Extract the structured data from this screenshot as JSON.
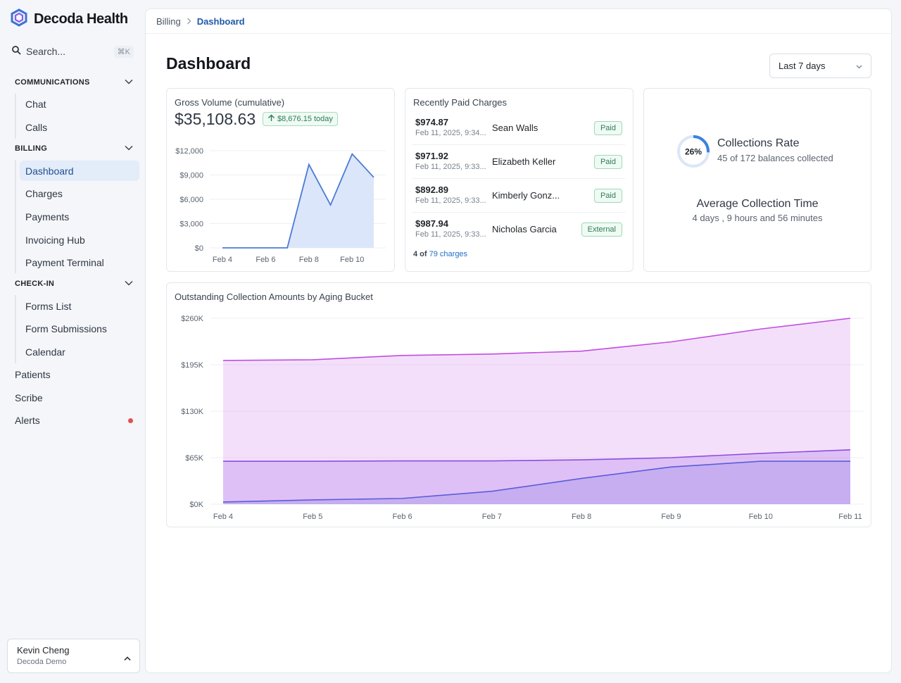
{
  "brand": {
    "name": "Decoda Health"
  },
  "search": {
    "placeholder": "Search...",
    "shortcut": "⌘K"
  },
  "sidebar": {
    "sections": [
      {
        "label": "COMMUNICATIONS",
        "items": [
          "Chat",
          "Calls"
        ]
      },
      {
        "label": "BILLING",
        "items": [
          "Dashboard",
          "Charges",
          "Payments",
          "Invoicing Hub",
          "Payment Terminal"
        ]
      },
      {
        "label": "CHECK-IN",
        "items": [
          "Forms List",
          "Form Submissions",
          "Calendar"
        ]
      }
    ],
    "top_items": [
      "Patients",
      "Scribe",
      "Alerts"
    ],
    "active_item": "Dashboard"
  },
  "user": {
    "name": "Kevin Cheng",
    "org": "Decoda Demo"
  },
  "breadcrumb": {
    "parent": "Billing",
    "current": "Dashboard"
  },
  "page": {
    "title": "Dashboard",
    "range": "Last 7 days"
  },
  "gross_volume": {
    "title": "Gross Volume (cumulative)",
    "value": "$35,108.63",
    "today_delta": "$8,676.15 today"
  },
  "recent_charges": {
    "title": "Recently Paid Charges",
    "rows": [
      {
        "amount": "$974.87",
        "date": "Feb 11, 2025, 9:34...",
        "name": "Sean Walls",
        "status": "Paid"
      },
      {
        "amount": "$971.92",
        "date": "Feb 11, 2025, 9:33...",
        "name": "Elizabeth Keller",
        "status": "Paid"
      },
      {
        "amount": "$892.89",
        "date": "Feb 11, 2025, 9:33...",
        "name": "Kimberly Gonz...",
        "status": "Paid"
      },
      {
        "amount": "$987.94",
        "date": "Feb 11, 2025, 9:33...",
        "name": "Nicholas Garcia",
        "status": "External"
      }
    ],
    "footer_prefix": "4 of",
    "footer_link": "79 charges"
  },
  "collections": {
    "rate": "26%",
    "rate_value": 0.26,
    "title": "Collections Rate",
    "subtitle": "45 of 172 balances collected",
    "avg_title": "Average Collection Time",
    "avg_value": "4 days , 9 hours and 56 minutes"
  },
  "colors": {
    "accent": "#1f5aa8",
    "line_blue": "#4a7bd4",
    "area_blue": "#dce6fa",
    "ring": "#3b82e0",
    "magenta": "#c04fe0",
    "purple": "#8a4fe0",
    "indigo": "#5a5ed8"
  },
  "chart_data": [
    {
      "type": "area",
      "title": "Gross Volume (cumulative)",
      "x": [
        "Feb 4",
        "Feb 5",
        "Feb 6",
        "Feb 7",
        "Feb 8",
        "Feb 9",
        "Feb 10",
        "Feb 11"
      ],
      "x_ticks": [
        "Feb 4",
        "Feb 6",
        "Feb 8",
        "Feb 10"
      ],
      "y_ticks": [
        "$0",
        "$3,000",
        "$6,000",
        "$9,000",
        "$12,000"
      ],
      "ylim": [
        0,
        12000
      ],
      "series": [
        {
          "values": [
            0,
            0,
            0,
            0,
            10300,
            5300,
            11600,
            8700
          ]
        }
      ],
      "grid": true
    },
    {
      "type": "area",
      "title": "Outstanding Collection Amounts by Aging Bucket",
      "x": [
        "Feb 4",
        "Feb 5",
        "Feb 6",
        "Feb 7",
        "Feb 8",
        "Feb 9",
        "Feb 10",
        "Feb 11"
      ],
      "y_ticks": [
        "$0K",
        "$65K",
        "$130K",
        "$195K",
        "$260K"
      ],
      "ylim": [
        0,
        260000
      ],
      "series": [
        {
          "values": [
            201000,
            202000,
            208000,
            210000,
            214000,
            227000,
            245000,
            260000
          ],
          "color": "#c04fe0"
        },
        {
          "values": [
            60000,
            60000,
            60500,
            60500,
            62000,
            65000,
            71000,
            76000
          ],
          "color": "#8a4fe0"
        },
        {
          "values": [
            3000,
            6000,
            8000,
            18000,
            36000,
            52000,
            60000,
            60000
          ],
          "color": "#5a5ed8"
        }
      ],
      "grid": true
    }
  ]
}
